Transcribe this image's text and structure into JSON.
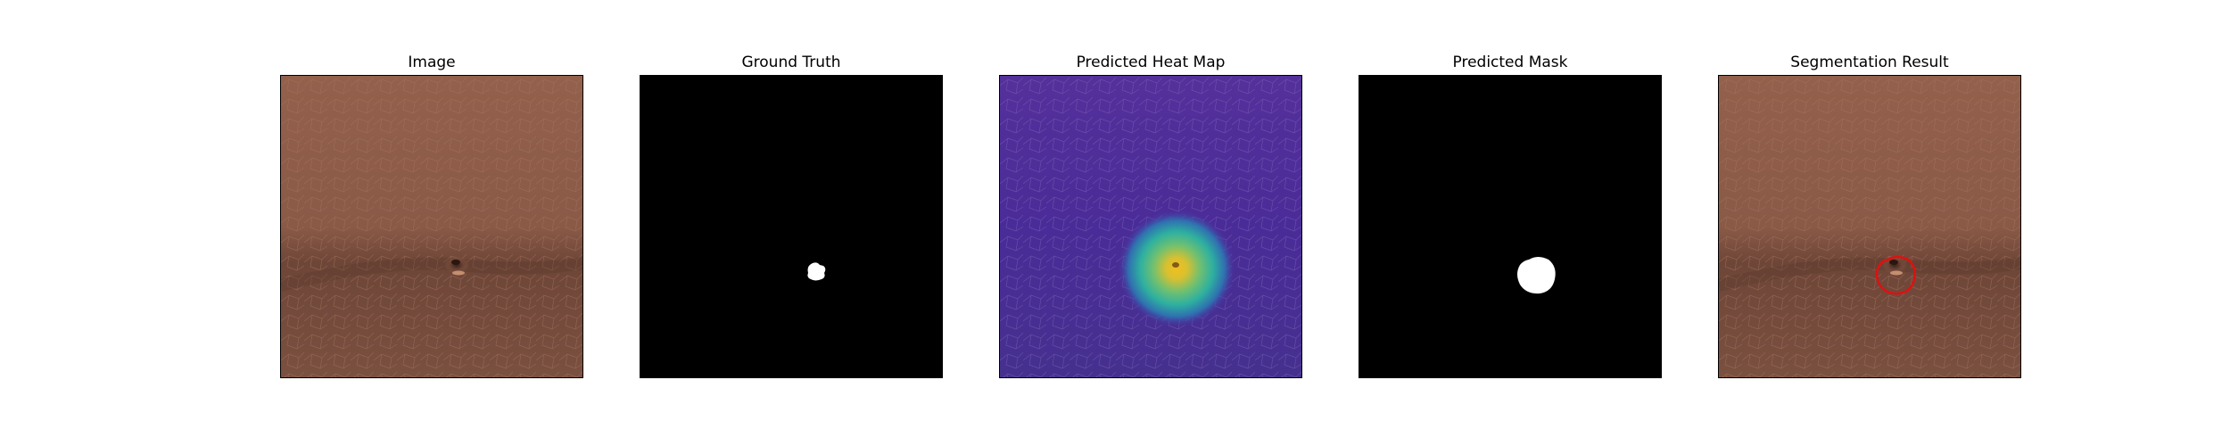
{
  "panels": [
    {
      "title": "Image",
      "kind": "image"
    },
    {
      "title": "Ground Truth",
      "kind": "ground-truth"
    },
    {
      "title": "Predicted Heat Map",
      "kind": "heat-map"
    },
    {
      "title": "Predicted Mask",
      "kind": "mask"
    },
    {
      "title": "Segmentation Result",
      "kind": "segmentation-result"
    }
  ],
  "colors": {
    "leather_base": "#8a5a48",
    "leather_shadow": "#5f3d33",
    "mask_background": "#000000",
    "mask_foreground": "#ffffff",
    "heatmap_low": "#4b2fa0",
    "heatmap_mid": "#2eb0a0",
    "heatmap_high": "#f0c020",
    "result_contour": "#e01010"
  }
}
